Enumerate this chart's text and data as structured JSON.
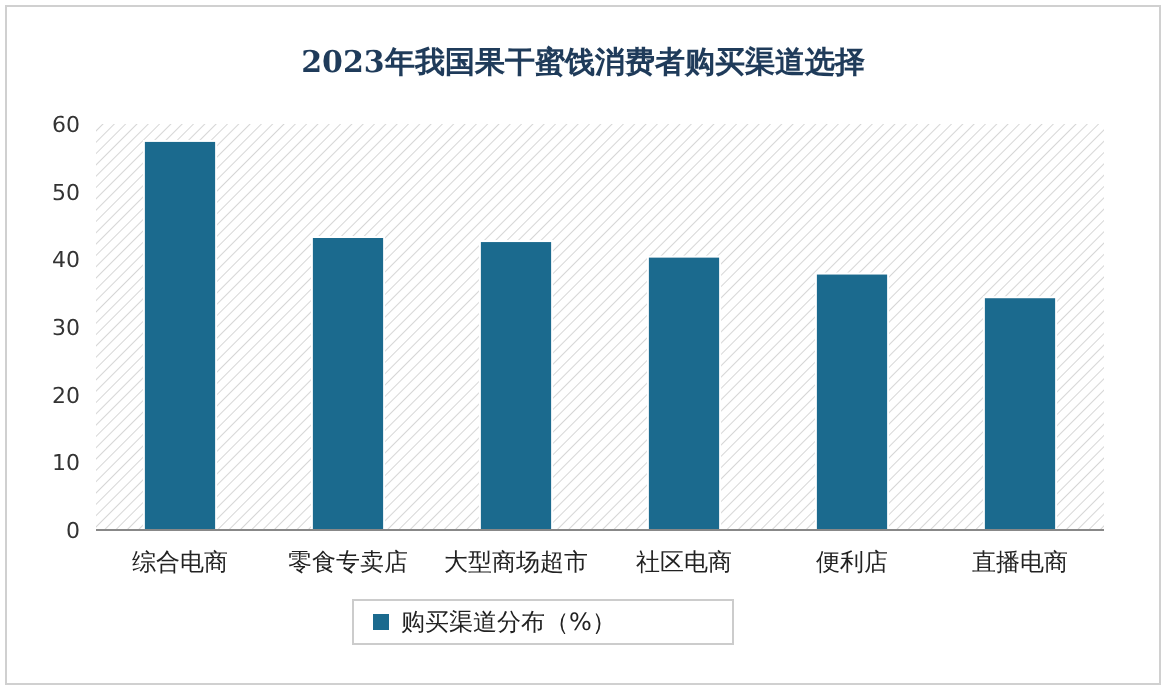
{
  "chart_data": {
    "type": "bar",
    "title": "2023年我国果干蜜饯消费者购买渠道选择",
    "categories": [
      "综合电商",
      "零食专卖店",
      "大型商场超市",
      "社区电商",
      "便利店",
      "直播电商"
    ],
    "series": [
      {
        "name": "购买渠道分布（%）",
        "color": "#1b6a8e",
        "values": [
          57.5,
          43.3,
          42.7,
          40.4,
          37.9,
          34.4
        ]
      }
    ],
    "ylim": [
      0,
      60
    ],
    "yticks": [
      0,
      10,
      20,
      30,
      40,
      50,
      60
    ],
    "legend": "bottom"
  }
}
